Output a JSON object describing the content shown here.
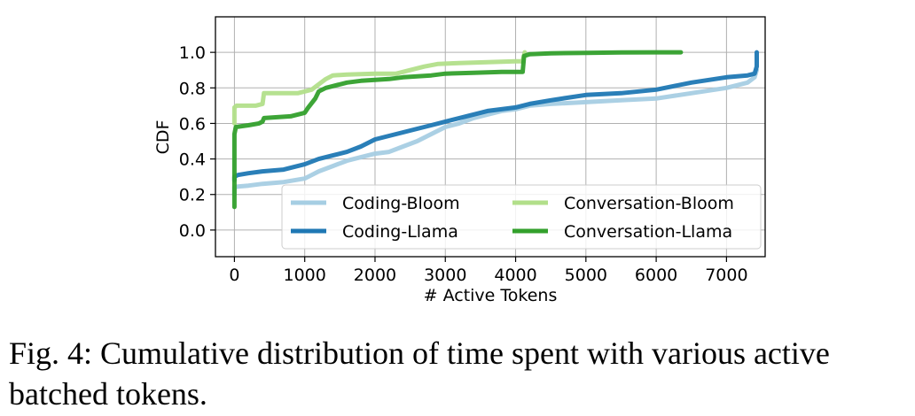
{
  "caption": "Fig. 4: Cumulative distribution of time spent with various active batched tokens.",
  "chart_data": {
    "type": "line",
    "title": "",
    "xlabel": "# Active Tokens",
    "ylabel": "CDF",
    "xlim": [
      -270,
      7550
    ],
    "ylim": [
      -0.15,
      1.2
    ],
    "xticks": [
      0,
      1000,
      2000,
      3000,
      4000,
      5000,
      6000,
      7000
    ],
    "yticks": [
      0.0,
      0.2,
      0.4,
      0.6,
      0.8,
      1.0
    ],
    "xtick_labels": [
      "0",
      "1000",
      "2000",
      "3000",
      "4000",
      "5000",
      "6000",
      "7000"
    ],
    "ytick_labels": [
      "0.0",
      "0.2",
      "0.4",
      "0.6",
      "0.8",
      "1.0"
    ],
    "grid": true,
    "legend_position": "lower-right",
    "series": [
      {
        "name": "Coding-Bloom",
        "color": "#a6cee3",
        "x": [
          0,
          0,
          50,
          200,
          400,
          700,
          1000,
          1100,
          1200,
          1400,
          1600,
          1800,
          2000,
          2200,
          2400,
          2600,
          2800,
          3000,
          3200,
          3400,
          3600,
          3800,
          4000,
          4200,
          4500,
          5000,
          5500,
          6000,
          6500,
          7000,
          7300,
          7400,
          7430
        ],
        "y": [
          0.2,
          0.24,
          0.245,
          0.25,
          0.26,
          0.27,
          0.29,
          0.31,
          0.33,
          0.36,
          0.39,
          0.41,
          0.43,
          0.44,
          0.47,
          0.5,
          0.54,
          0.58,
          0.6,
          0.63,
          0.65,
          0.67,
          0.68,
          0.7,
          0.71,
          0.72,
          0.73,
          0.74,
          0.77,
          0.8,
          0.83,
          0.86,
          0.9
        ]
      },
      {
        "name": "Coding-Llama",
        "color": "#1f78b4",
        "x": [
          0,
          0,
          50,
          200,
          400,
          700,
          1000,
          1200,
          1400,
          1600,
          1800,
          2000,
          2200,
          2400,
          2600,
          2800,
          3000,
          3200,
          3400,
          3600,
          3800,
          4000,
          4200,
          4500,
          5000,
          5500,
          6000,
          6500,
          7000,
          7300,
          7400,
          7430,
          7430
        ],
        "y": [
          0.28,
          0.3,
          0.31,
          0.32,
          0.33,
          0.34,
          0.37,
          0.4,
          0.42,
          0.44,
          0.47,
          0.51,
          0.53,
          0.55,
          0.57,
          0.59,
          0.61,
          0.63,
          0.65,
          0.67,
          0.68,
          0.69,
          0.71,
          0.73,
          0.76,
          0.77,
          0.79,
          0.83,
          0.86,
          0.87,
          0.88,
          0.92,
          1.0
        ]
      },
      {
        "name": "Conversation-Bloom",
        "color": "#b2df8a",
        "x": [
          0,
          0,
          30,
          300,
          400,
          420,
          900,
          1000,
          1100,
          1200,
          1300,
          1400,
          1600,
          2000,
          2300,
          2400,
          2500,
          2700,
          2900,
          3200,
          3600,
          4000,
          4100,
          4130
        ],
        "y": [
          0.6,
          0.69,
          0.7,
          0.7,
          0.71,
          0.77,
          0.77,
          0.78,
          0.79,
          0.82,
          0.85,
          0.87,
          0.875,
          0.88,
          0.88,
          0.89,
          0.9,
          0.92,
          0.935,
          0.94,
          0.945,
          0.95,
          0.95,
          1.0
        ]
      },
      {
        "name": "Conversation-Llama",
        "color": "#33a02c",
        "x": [
          0,
          0,
          20,
          200,
          350,
          400,
          420,
          800,
          1000,
          1050,
          1150,
          1200,
          1300,
          1400,
          1600,
          1800,
          2000,
          2200,
          2400,
          2600,
          2800,
          3000,
          3400,
          3800,
          4100,
          4120,
          4200,
          4500,
          5000,
          5500,
          6000,
          6350
        ],
        "y": [
          0.13,
          0.54,
          0.58,
          0.59,
          0.6,
          0.61,
          0.63,
          0.64,
          0.66,
          0.69,
          0.74,
          0.78,
          0.8,
          0.81,
          0.83,
          0.84,
          0.845,
          0.85,
          0.86,
          0.865,
          0.87,
          0.88,
          0.885,
          0.89,
          0.89,
          0.98,
          0.99,
          0.995,
          0.997,
          0.999,
          1.0,
          1.0
        ]
      }
    ]
  }
}
